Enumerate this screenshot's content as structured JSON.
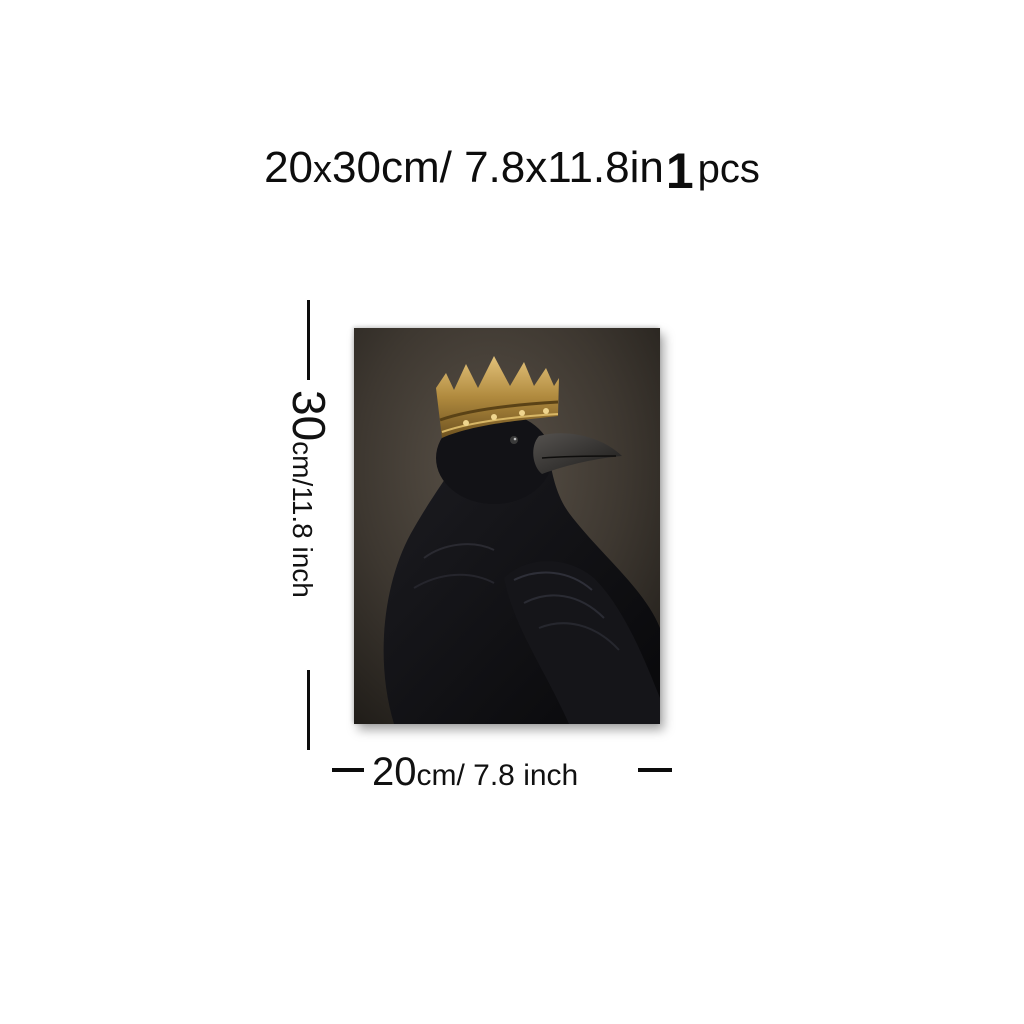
{
  "headline": {
    "size_cm_num": "20",
    "size_cm_x": "x",
    "size_cm_rest": "30cm/ 7.8x11.8in",
    "qty_num": "1",
    "qty_unit": "pcs"
  },
  "height_label": {
    "num": "30",
    "unit": "cm/11.8 inch"
  },
  "width_label": {
    "num": "20",
    "unit": "cm/ 7.8 inch"
  },
  "artwork": {
    "subject": "crowned raven",
    "icons": [
      "raven-image",
      "crown-icon"
    ]
  }
}
